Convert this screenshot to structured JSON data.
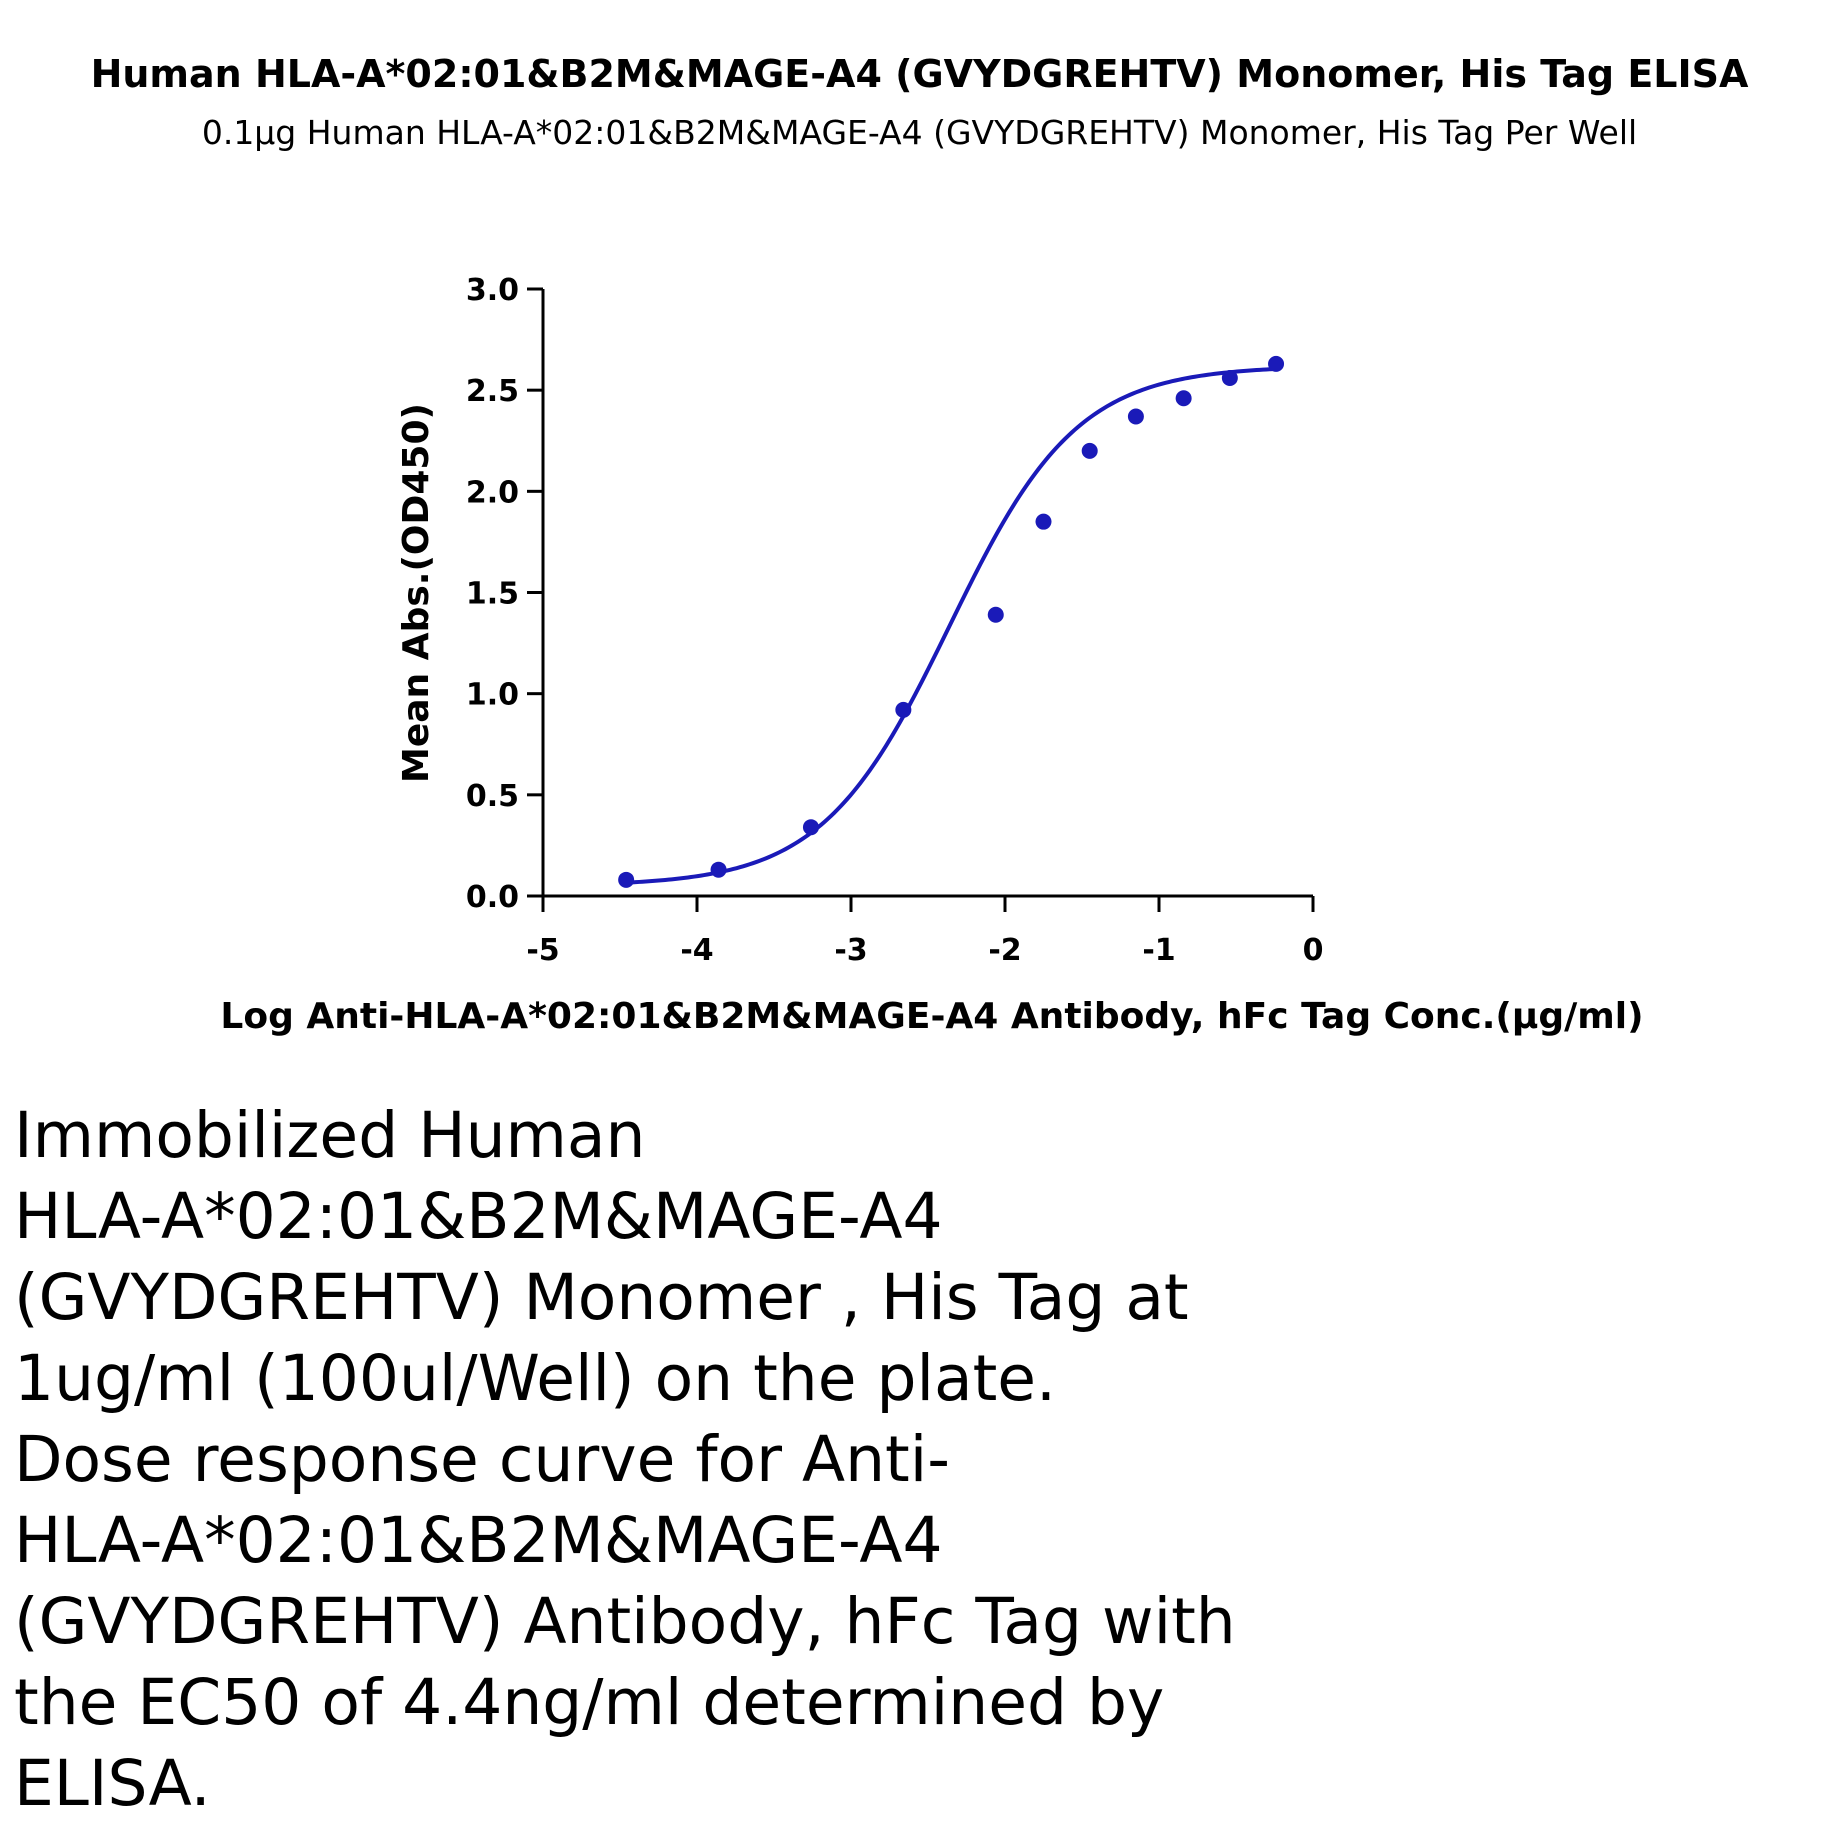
{
  "chart_data": {
    "type": "scatter",
    "title": "Human HLA-A*02:01&B2M&MAGE-A4 (GVYDGREHTV) Monomer, His Tag ELISA",
    "subtitle": "0.1μg Human HLA-A*02:01&B2M&MAGE-A4 (GVYDGREHTV) Monomer, His Tag Per Well",
    "xlabel": "Log Anti-HLA-A*02:01&B2M&MAGE-A4 Antibody, hFc Tag Conc.(μg/ml)",
    "ylabel": "Mean Abs.(OD450)",
    "xlim": [
      -5,
      0
    ],
    "ylim": [
      0,
      3.0
    ],
    "x_ticks": [
      "-5",
      "-4",
      "-3",
      "-2",
      "-1",
      "0"
    ],
    "y_ticks": [
      "0.0",
      "0.5",
      "1.0",
      "1.5",
      "2.0",
      "2.5",
      "3.0"
    ],
    "grid": false,
    "series": [
      {
        "points": [
          {
            "x": -4.46,
            "y": 0.08
          },
          {
            "x": -3.86,
            "y": 0.13
          },
          {
            "x": -3.26,
            "y": 0.34
          },
          {
            "x": -2.66,
            "y": 0.92
          },
          {
            "x": -2.06,
            "y": 1.39
          },
          {
            "x": -1.75,
            "y": 1.85
          },
          {
            "x": -1.45,
            "y": 2.2
          },
          {
            "x": -1.15,
            "y": 2.37
          },
          {
            "x": -0.84,
            "y": 2.46
          },
          {
            "x": -0.54,
            "y": 2.56
          },
          {
            "x": -0.24,
            "y": 2.63
          }
        ],
        "fit": {
          "model": "4PL",
          "bottom": 0.05,
          "top": 2.62,
          "logEC50": -2.36,
          "hill": 1.05
        }
      }
    ],
    "colors": {
      "series": "#1a1ab8",
      "axis": "#000000"
    }
  },
  "caption": "Immobilized Human\nHLA-A*02:01&B2M&MAGE-A4\n(GVYDGREHTV) Monomer , His Tag at\n1ug/ml (100ul/Well) on the plate.\nDose response curve for Anti-\nHLA-A*02:01&B2M&MAGE-A4\n(GVYDGREHTV) Antibody, hFc Tag with\nthe EC50 of 4.4ng/ml determined by\nELISA."
}
